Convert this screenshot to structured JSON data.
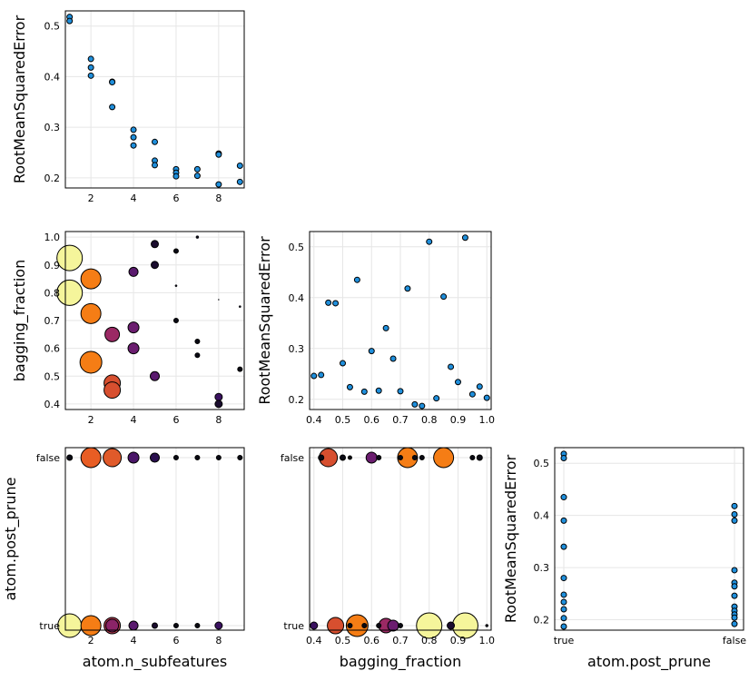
{
  "chart_data": [
    {
      "type": "scatter",
      "panel": "top-left",
      "xlabel": "",
      "ylabel": "RootMeanSquaredError",
      "xlim": [
        0.8,
        9.2
      ],
      "ylim": [
        0.18,
        0.53
      ],
      "xticks": [
        2,
        4,
        6,
        8
      ],
      "yticks": [
        0.2,
        0.3,
        0.4,
        0.5
      ],
      "tick_labels_x": [
        "2",
        "4",
        "6",
        "8"
      ],
      "tick_labels_y": [
        "0.2",
        "0.3",
        "0.4",
        "0.5"
      ],
      "color": "#1f8fdc",
      "points": [
        {
          "x": 1,
          "y": 0.518
        },
        {
          "x": 1,
          "y": 0.51
        },
        {
          "x": 2,
          "y": 0.435
        },
        {
          "x": 2,
          "y": 0.418
        },
        {
          "x": 2,
          "y": 0.402
        },
        {
          "x": 3,
          "y": 0.39
        },
        {
          "x": 3,
          "y": 0.389
        },
        {
          "x": 3,
          "y": 0.34
        },
        {
          "x": 4,
          "y": 0.295
        },
        {
          "x": 4,
          "y": 0.28
        },
        {
          "x": 4,
          "y": 0.264
        },
        {
          "x": 5,
          "y": 0.271
        },
        {
          "x": 5,
          "y": 0.234
        },
        {
          "x": 5,
          "y": 0.225
        },
        {
          "x": 6,
          "y": 0.217
        },
        {
          "x": 6,
          "y": 0.21
        },
        {
          "x": 6,
          "y": 0.203
        },
        {
          "x": 7,
          "y": 0.217
        },
        {
          "x": 7,
          "y": 0.204
        },
        {
          "x": 8,
          "y": 0.248
        },
        {
          "x": 8,
          "y": 0.246
        },
        {
          "x": 8,
          "y": 0.187
        },
        {
          "x": 9,
          "y": 0.224
        },
        {
          "x": 9,
          "y": 0.192
        }
      ]
    },
    {
      "type": "scatter",
      "panel": "middle-left",
      "xlabel": "",
      "ylabel": "bagging_fraction",
      "xlim": [
        0.8,
        9.2
      ],
      "ylim": [
        0.38,
        1.02
      ],
      "xticks": [
        2,
        4,
        6,
        8
      ],
      "yticks": [
        0.4,
        0.5,
        0.6,
        0.7,
        0.8,
        0.9,
        1.0
      ],
      "tick_labels_x": [
        "2",
        "4",
        "6",
        "8"
      ],
      "tick_labels_y": [
        "0.4",
        "0.5",
        "0.6",
        "0.7",
        "0.8",
        "0.9",
        "1.0"
      ],
      "points": [
        {
          "x": 1,
          "y": 0.925,
          "r": 14,
          "c": "#f5f59b"
        },
        {
          "x": 1,
          "y": 0.8,
          "r": 14,
          "c": "#f5f59b"
        },
        {
          "x": 2,
          "y": 0.85,
          "r": 11,
          "c": "#f57d15"
        },
        {
          "x": 2,
          "y": 0.725,
          "r": 11,
          "c": "#f57d15"
        },
        {
          "x": 2,
          "y": 0.55,
          "r": 12,
          "c": "#f57d15"
        },
        {
          "x": 3,
          "y": 0.65,
          "r": 8,
          "c": "#9b2964"
        },
        {
          "x": 3,
          "y": 0.475,
          "r": 9,
          "c": "#d74f2f"
        },
        {
          "x": 3,
          "y": 0.45,
          "r": 9,
          "c": "#d74f2f"
        },
        {
          "x": 4,
          "y": 0.875,
          "r": 5,
          "c": "#5a1a6e"
        },
        {
          "x": 4,
          "y": 0.675,
          "r": 6,
          "c": "#6b1d6f"
        },
        {
          "x": 4,
          "y": 0.6,
          "r": 6,
          "c": "#6b1d6f"
        },
        {
          "x": 5,
          "y": 0.975,
          "r": 4,
          "c": "#1a0c2e"
        },
        {
          "x": 5,
          "y": 0.9,
          "r": 4,
          "c": "#1a0c2e"
        },
        {
          "x": 5,
          "y": 0.5,
          "r": 5,
          "c": "#5a1a6e"
        },
        {
          "x": 6,
          "y": 0.95,
          "r": 2.5,
          "c": "#0a0a14"
        },
        {
          "x": 6,
          "y": 0.825,
          "r": 1.2,
          "c": "#0a0a14"
        },
        {
          "x": 6,
          "y": 0.7,
          "r": 2.5,
          "c": "#0a0a14"
        },
        {
          "x": 7,
          "y": 1.0,
          "r": 1.6,
          "c": "#0a0a14"
        },
        {
          "x": 7,
          "y": 0.625,
          "r": 2.5,
          "c": "#0a0a14"
        },
        {
          "x": 7,
          "y": 0.575,
          "r": 2.5,
          "c": "#0a0a14"
        },
        {
          "x": 8,
          "y": 0.775,
          "r": 0.6,
          "c": "#0a0a14"
        },
        {
          "x": 8,
          "y": 0.425,
          "r": 4,
          "c": "#3a1160"
        },
        {
          "x": 8,
          "y": 0.4,
          "r": 4,
          "c": "#1a0c2e"
        },
        {
          "x": 9,
          "y": 0.75,
          "r": 1.2,
          "c": "#0a0a14"
        },
        {
          "x": 9,
          "y": 0.525,
          "r": 2.5,
          "c": "#0a0a14"
        }
      ]
    },
    {
      "type": "scatter",
      "panel": "middle-center",
      "xlabel": "",
      "ylabel": "RootMeanSquaredError",
      "xlim": [
        0.385,
        1.015
      ],
      "ylim": [
        0.18,
        0.53
      ],
      "xticks": [
        0.4,
        0.5,
        0.6,
        0.7,
        0.8,
        0.9,
        1.0
      ],
      "yticks": [
        0.2,
        0.3,
        0.4,
        0.5
      ],
      "tick_labels_x": [
        "0.4",
        "0.5",
        "0.6",
        "0.7",
        "0.8",
        "0.9",
        "1.0"
      ],
      "tick_labels_y": [
        "0.2",
        "0.3",
        "0.4",
        "0.5"
      ],
      "color": "#1f8fdc",
      "points": [
        {
          "x": 0.4,
          "y": 0.246
        },
        {
          "x": 0.425,
          "y": 0.248
        },
        {
          "x": 0.45,
          "y": 0.39
        },
        {
          "x": 0.475,
          "y": 0.389
        },
        {
          "x": 0.5,
          "y": 0.271
        },
        {
          "x": 0.525,
          "y": 0.224
        },
        {
          "x": 0.55,
          "y": 0.435
        },
        {
          "x": 0.575,
          "y": 0.215
        },
        {
          "x": 0.6,
          "y": 0.295
        },
        {
          "x": 0.625,
          "y": 0.217
        },
        {
          "x": 0.65,
          "y": 0.34
        },
        {
          "x": 0.675,
          "y": 0.28
        },
        {
          "x": 0.7,
          "y": 0.216
        },
        {
          "x": 0.725,
          "y": 0.418
        },
        {
          "x": 0.75,
          "y": 0.19
        },
        {
          "x": 0.775,
          "y": 0.187
        },
        {
          "x": 0.8,
          "y": 0.51
        },
        {
          "x": 0.825,
          "y": 0.202
        },
        {
          "x": 0.85,
          "y": 0.402
        },
        {
          "x": 0.875,
          "y": 0.264
        },
        {
          "x": 0.9,
          "y": 0.234
        },
        {
          "x": 0.925,
          "y": 0.518
        },
        {
          "x": 0.95,
          "y": 0.21
        },
        {
          "x": 0.975,
          "y": 0.225
        },
        {
          "x": 1.0,
          "y": 0.203
        }
      ]
    },
    {
      "type": "scatter",
      "panel": "bottom-left",
      "xlabel": "atom.n_subfeatures",
      "ylabel": "atom.post_prune",
      "xlim": [
        0.8,
        9.2
      ],
      "ycategories": [
        "true",
        "false"
      ],
      "xticks": [
        2,
        4,
        6,
        8
      ],
      "tick_labels_x": [
        "2",
        "4",
        "6",
        "8"
      ],
      "tick_labels_y": [
        "true",
        "false"
      ],
      "points": [
        {
          "x": 1,
          "y": "false",
          "r": 3,
          "c": "#0a0a14"
        },
        {
          "x": 2,
          "y": "false",
          "r": 11,
          "c": "#e85d24"
        },
        {
          "x": 3,
          "y": "false",
          "r": 10,
          "c": "#e05a2a"
        },
        {
          "x": 4,
          "y": "false",
          "r": 6,
          "c": "#4a1668"
        },
        {
          "x": 5,
          "y": "false",
          "r": 5,
          "c": "#2a0f4e"
        },
        {
          "x": 6,
          "y": "false",
          "r": 2.5,
          "c": "#0a0a14"
        },
        {
          "x": 7,
          "y": "false",
          "r": 2.5,
          "c": "#0a0a14"
        },
        {
          "x": 8,
          "y": "false",
          "r": 2.5,
          "c": "#0a0a14"
        },
        {
          "x": 9,
          "y": "false",
          "r": 2.5,
          "c": "#0a0a14"
        },
        {
          "x": 1,
          "y": "true",
          "r": 13,
          "c": "#f5f59b"
        },
        {
          "x": 2,
          "y": "true",
          "r": 11,
          "c": "#f57d15"
        },
        {
          "x": 3,
          "y": "true",
          "r": 9,
          "c": "#b83a52"
        },
        {
          "x": 3,
          "y": "true",
          "r": 7,
          "c": "#8b2468"
        },
        {
          "x": 4,
          "y": "true",
          "r": 5,
          "c": "#5a1a6e"
        },
        {
          "x": 5,
          "y": "true",
          "r": 3,
          "c": "#1a0c2e"
        },
        {
          "x": 6,
          "y": "true",
          "r": 2.5,
          "c": "#0a0a14"
        },
        {
          "x": 7,
          "y": "true",
          "r": 2.5,
          "c": "#0a0a14"
        },
        {
          "x": 8,
          "y": "true",
          "r": 4,
          "c": "#3a1160"
        }
      ]
    },
    {
      "type": "scatter",
      "panel": "bottom-center",
      "xlabel": "bagging_fraction",
      "ylabel": "",
      "xlim": [
        0.385,
        1.015
      ],
      "ycategories": [
        "true",
        "false"
      ],
      "xticks": [
        0.4,
        0.5,
        0.6,
        0.7,
        0.8,
        0.9,
        1.0
      ],
      "tick_labels_x": [
        "0.4",
        "0.5",
        "0.6",
        "0.7",
        "0.8",
        "0.9",
        "1.0"
      ],
      "tick_labels_y": [
        "true",
        "false"
      ],
      "points": [
        {
          "x": 0.425,
          "y": "false",
          "r": 3,
          "c": "#0a0a14"
        },
        {
          "x": 0.45,
          "y": "false",
          "r": 10,
          "c": "#d74f2f"
        },
        {
          "x": 0.5,
          "y": "false",
          "r": 3,
          "c": "#0a0a14"
        },
        {
          "x": 0.525,
          "y": "false",
          "r": 2,
          "c": "#0a0a14"
        },
        {
          "x": 0.6,
          "y": "false",
          "r": 6,
          "c": "#6b1d6f"
        },
        {
          "x": 0.625,
          "y": "false",
          "r": 2.5,
          "c": "#0a0a14"
        },
        {
          "x": 0.7,
          "y": "false",
          "r": 2.5,
          "c": "#0a0a14"
        },
        {
          "x": 0.725,
          "y": "false",
          "r": 11,
          "c": "#f57d15"
        },
        {
          "x": 0.75,
          "y": "false",
          "r": 2.5,
          "c": "#0a0a14"
        },
        {
          "x": 0.775,
          "y": "false",
          "r": 2.5,
          "c": "#0a0a14"
        },
        {
          "x": 0.85,
          "y": "false",
          "r": 11,
          "c": "#f57d15"
        },
        {
          "x": 0.95,
          "y": "false",
          "r": 2.5,
          "c": "#0a0a14"
        },
        {
          "x": 0.975,
          "y": "false",
          "r": 3,
          "c": "#0a0a14"
        },
        {
          "x": 0.4,
          "y": "true",
          "r": 4,
          "c": "#3a1160"
        },
        {
          "x": 0.475,
          "y": "true",
          "r": 9,
          "c": "#d74f2f"
        },
        {
          "x": 0.525,
          "y": "true",
          "r": 2.5,
          "c": "#0a0a14"
        },
        {
          "x": 0.55,
          "y": "true",
          "r": 12,
          "c": "#f57d15"
        },
        {
          "x": 0.575,
          "y": "true",
          "r": 2.5,
          "c": "#0a0a14"
        },
        {
          "x": 0.625,
          "y": "true",
          "r": 2.5,
          "c": "#0a0a14"
        },
        {
          "x": 0.65,
          "y": "true",
          "r": 8,
          "c": "#9b2964"
        },
        {
          "x": 0.675,
          "y": "true",
          "r": 6,
          "c": "#6b1d6f"
        },
        {
          "x": 0.7,
          "y": "true",
          "r": 2.5,
          "c": "#0a0a14"
        },
        {
          "x": 0.8,
          "y": "true",
          "r": 14,
          "c": "#f5f59b"
        },
        {
          "x": 0.875,
          "y": "true",
          "r": 4,
          "c": "#1a0c2e"
        },
        {
          "x": 0.925,
          "y": "true",
          "r": 14,
          "c": "#f5f59b"
        },
        {
          "x": 1.0,
          "y": "true",
          "r": 1.6,
          "c": "#0a0a14"
        }
      ]
    },
    {
      "type": "scatter",
      "panel": "bottom-right",
      "xlabel": "atom.post_prune",
      "ylabel": "RootMeanSquaredError",
      "xcategories": [
        "true",
        "false"
      ],
      "ylim": [
        0.18,
        0.53
      ],
      "yticks": [
        0.2,
        0.3,
        0.4,
        0.5
      ],
      "tick_labels_x": [
        "true",
        "false"
      ],
      "tick_labels_y": [
        "0.2",
        "0.3",
        "0.4",
        "0.5"
      ],
      "color": "#1f8fdc",
      "points": [
        {
          "x": "true",
          "y": 0.518
        },
        {
          "x": "true",
          "y": 0.51
        },
        {
          "x": "true",
          "y": 0.435
        },
        {
          "x": "true",
          "y": 0.39
        },
        {
          "x": "true",
          "y": 0.34
        },
        {
          "x": "true",
          "y": 0.28
        },
        {
          "x": "true",
          "y": 0.248
        },
        {
          "x": "true",
          "y": 0.234
        },
        {
          "x": "true",
          "y": 0.22
        },
        {
          "x": "true",
          "y": 0.203
        },
        {
          "x": "true",
          "y": 0.187
        },
        {
          "x": "false",
          "y": 0.418
        },
        {
          "x": "false",
          "y": 0.402
        },
        {
          "x": "false",
          "y": 0.39
        },
        {
          "x": "false",
          "y": 0.295
        },
        {
          "x": "false",
          "y": 0.271
        },
        {
          "x": "false",
          "y": 0.264
        },
        {
          "x": "false",
          "y": 0.246
        },
        {
          "x": "false",
          "y": 0.225
        },
        {
          "x": "false",
          "y": 0.217
        },
        {
          "x": "false",
          "y": 0.21
        },
        {
          "x": "false",
          "y": 0.204
        },
        {
          "x": "false",
          "y": 0.192
        }
      ]
    }
  ]
}
